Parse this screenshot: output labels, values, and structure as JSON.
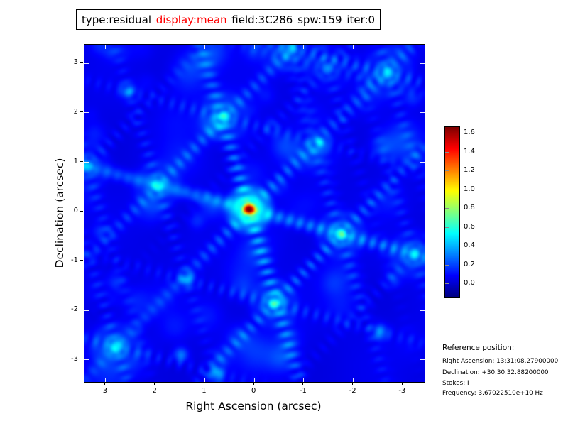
{
  "title": {
    "segments": [
      {
        "text": "type:residual",
        "color": "#000000"
      },
      {
        "text": "display:mean",
        "color": "#ff0000"
      },
      {
        "text": "field:3C286",
        "color": "#000000"
      },
      {
        "text": "spw:159",
        "color": "#000000"
      },
      {
        "text": "iter:0",
        "color": "#000000"
      }
    ]
  },
  "axes": {
    "xlabel": "Right Ascension (arcsec)",
    "ylabel": "Declination (arcsec)",
    "x_ticks": [
      3,
      2,
      1,
      0,
      -1,
      -2,
      -3
    ],
    "y_ticks": [
      3,
      2,
      1,
      0,
      -1,
      -2,
      -3
    ],
    "ra_range": [
      3.43,
      -3.44
    ],
    "dec_range": [
      -3.45,
      3.38
    ]
  },
  "colorbar": {
    "tick_labels": [
      "1.6",
      "1.4",
      "1.2",
      "1.0",
      "0.8",
      "0.6",
      "0.4",
      "0.2",
      "0.0"
    ],
    "vmin": -0.136,
    "vmax": 1.675,
    "colormap": "jet"
  },
  "reference": {
    "heading": "Reference position:",
    "lines": [
      "Right Ascension: 13:31:08.27900000",
      "Declination: +30.30.32.88200000",
      "Stokes: I",
      "Frequency: 3.67022510e+10 Hz"
    ]
  },
  "chart_data": {
    "type": "heatmap",
    "title": "type:residual display:mean field:3C286 spw:159 iter:0",
    "xlabel": "Right Ascension (arcsec)",
    "ylabel": "Declination (arcsec)",
    "x_range": [
      3.43,
      -3.44
    ],
    "y_range": [
      -3.45,
      3.38
    ],
    "value_range": [
      -0.136,
      1.675
    ],
    "colormap": "jet",
    "background_level": 0.05,
    "peak": {
      "ra": 0.1,
      "dec": 0.05,
      "value": 1.68
    },
    "sources": [
      {
        "ra": 0.1,
        "dec": 0.05,
        "amp": 1.62,
        "sig": 0.09
      },
      {
        "ra": 1.95,
        "dec": 0.53,
        "amp": 0.42,
        "sig": 0.1
      },
      {
        "ra": 0.6,
        "dec": 1.91,
        "amp": 0.4,
        "sig": 0.1
      },
      {
        "ra": -1.74,
        "dec": -0.46,
        "amp": 0.5,
        "sig": 0.1
      },
      {
        "ra": -0.4,
        "dec": -1.86,
        "amp": 0.46,
        "sig": 0.1
      },
      {
        "ra": 1.35,
        "dec": -1.38,
        "amp": 0.2,
        "sig": 0.1
      },
      {
        "ra": -1.35,
        "dec": 1.38,
        "amp": 0.2,
        "sig": 0.1
      },
      {
        "ra": -2.7,
        "dec": 2.81,
        "amp": 0.38,
        "sig": 0.11
      },
      {
        "ra": 2.78,
        "dec": -2.74,
        "amp": 0.42,
        "sig": 0.11
      },
      {
        "ra": -3.23,
        "dec": -0.86,
        "amp": 0.34,
        "sig": 0.1
      },
      {
        "ra": 3.38,
        "dec": 0.92,
        "amp": 0.36,
        "sig": 0.1
      },
      {
        "ra": -0.75,
        "dec": 3.29,
        "amp": 0.3,
        "sig": 0.1
      },
      {
        "ra": 0.75,
        "dec": -3.29,
        "amp": 0.28,
        "sig": 0.1
      },
      {
        "ra": -1.48,
        "dec": 2.9,
        "amp": 0.3,
        "sig": 0.1
      },
      {
        "ra": 1.48,
        "dec": -2.9,
        "amp": 0.26,
        "sig": 0.1
      },
      {
        "ra": 2.55,
        "dec": 2.44,
        "amp": 0.22,
        "sig": 0.11
      },
      {
        "ra": -2.55,
        "dec": -2.44,
        "amp": 0.24,
        "sig": 0.11
      }
    ],
    "arm_angles_deg": [
      15,
      73,
      134,
      195,
      253,
      314
    ],
    "arm_strength": 0.14,
    "ripple_wavelength": 0.22,
    "noise": {
      "count": 80,
      "amp_min": 0.02,
      "amp_max": 0.12,
      "sig_min": 0.1,
      "sig_max": 0.3,
      "seed": 1234
    }
  }
}
